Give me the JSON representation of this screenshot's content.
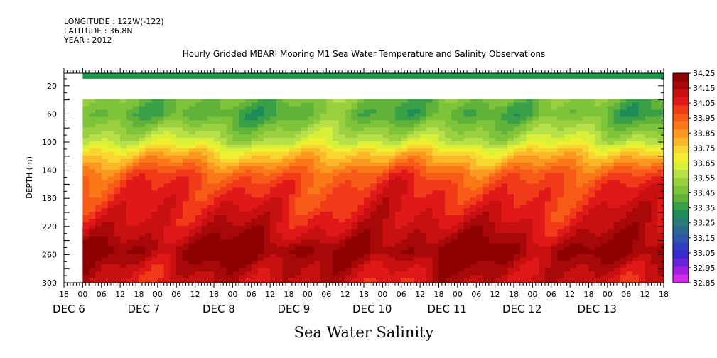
{
  "header": {
    "longitude": "LONGITUDE : 122W(-122)",
    "latitude": "LATITUDE : 36.8N",
    "year": "YEAR : 2012"
  },
  "chart_data": {
    "type": "heatmap",
    "title": "Hourly Gridded MBARI Mooring M1 Sea Water Temperature and Salinity Observations",
    "xlabel": "Sea Water Salinity",
    "ylabel": "DEPTH (m)",
    "ylim": [
      300,
      2
    ],
    "y_reversed": true,
    "xlim_hours": [
      -6,
      186
    ],
    "x_start": "DEC 6 00:00",
    "x_tick_labels": [
      "18",
      "00",
      "06",
      "12",
      "18",
      "00",
      "06",
      "12",
      "18",
      "00",
      "06",
      "12",
      "18",
      "00",
      "06",
      "12",
      "18",
      "00",
      "06",
      "12",
      "18",
      "00",
      "06",
      "12",
      "18",
      "00",
      "06",
      "12",
      "18",
      "00",
      "06",
      "12",
      "18"
    ],
    "x_day_labels": [
      "DEC 6",
      "DEC 7",
      "DEC 8",
      "DEC 9",
      "DEC 10",
      "DEC 11",
      "DEC 12",
      "DEC 13"
    ],
    "y_ticks": [
      20,
      60,
      100,
      140,
      180,
      220,
      260,
      300
    ],
    "colorbar": {
      "labels": [
        "34.25",
        "34.15",
        "34.05",
        "33.95",
        "33.85",
        "33.75",
        "33.65",
        "33.55",
        "33.45",
        "33.35",
        "33.25",
        "33.15",
        "33.05",
        "32.95",
        "32.85"
      ],
      "colors": [
        "#8c0000",
        "#a80808",
        "#c81010",
        "#e01818",
        "#f03a18",
        "#f85a18",
        "#fa7818",
        "#fb9820",
        "#fbb828",
        "#f8d830",
        "#f0f030",
        "#d8f038",
        "#b8e048",
        "#9ad040",
        "#7ec43a",
        "#60b238",
        "#3aa048",
        "#1e8c58",
        "#2a7a78",
        "#2a6890",
        "#2f55a8",
        "#3040c0",
        "#3a2ad4",
        "#6a24dc",
        "#a020e0",
        "#d82af0"
      ]
    },
    "depth_profile": [
      {
        "depth": 10,
        "salinity": 33.35
      },
      {
        "depth": 40,
        "salinity": 33.45
      },
      {
        "depth": 60,
        "salinity": 33.4
      },
      {
        "depth": 80,
        "salinity": 33.5
      },
      {
        "depth": 100,
        "salinity": 33.6
      },
      {
        "depth": 115,
        "salinity": 33.75
      },
      {
        "depth": 130,
        "salinity": 33.85
      },
      {
        "depth": 145,
        "salinity": 33.95
      },
      {
        "depth": 160,
        "salinity": 34.0
      },
      {
        "depth": 190,
        "salinity": 34.05
      },
      {
        "depth": 215,
        "salinity": 34.1
      },
      {
        "depth": 235,
        "salinity": 34.15
      },
      {
        "depth": 255,
        "salinity": 34.22
      },
      {
        "depth": 275,
        "salinity": 34.15
      },
      {
        "depth": 300,
        "salinity": 34.1
      }
    ],
    "missing_depth_range": [
      10,
      39
    ],
    "surface_band_depth": [
      2,
      10
    ]
  }
}
